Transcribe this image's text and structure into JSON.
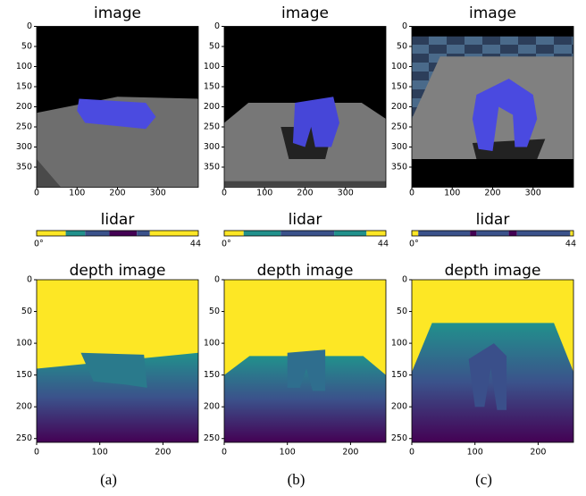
{
  "panels": [
    {
      "caption": "(a)",
      "image": {
        "title": "image",
        "yticks": [
          0,
          50,
          100,
          150,
          200,
          250,
          300,
          350
        ],
        "xticks": [
          0,
          100,
          200,
          300
        ]
      },
      "lidar": {
        "title": "lidar",
        "start_label": "0°",
        "end_label": "44"
      },
      "depth": {
        "title": "depth image",
        "yticks": [
          0,
          50,
          100,
          150,
          200,
          250
        ],
        "xticks": [
          0,
          100,
          200
        ]
      }
    },
    {
      "caption": "(b)",
      "image": {
        "title": "image",
        "yticks": [
          0,
          50,
          100,
          150,
          200,
          250,
          300,
          350
        ],
        "xticks": [
          0,
          100,
          200,
          300
        ]
      },
      "lidar": {
        "title": "lidar",
        "start_label": "0°",
        "end_label": "44"
      },
      "depth": {
        "title": "depth image",
        "yticks": [
          0,
          50,
          100,
          150,
          200,
          250
        ],
        "xticks": [
          0,
          100,
          200
        ]
      }
    },
    {
      "caption": "(c)",
      "image": {
        "title": "image",
        "yticks": [
          0,
          50,
          100,
          150,
          200,
          250,
          300,
          350
        ],
        "xticks": [
          0,
          100,
          200,
          300
        ]
      },
      "lidar": {
        "title": "lidar",
        "start_label": "0°",
        "end_label": "44"
      },
      "depth": {
        "title": "depth image",
        "yticks": [
          0,
          50,
          100,
          150,
          200,
          250
        ],
        "xticks": [
          0,
          100,
          200
        ]
      }
    }
  ]
}
